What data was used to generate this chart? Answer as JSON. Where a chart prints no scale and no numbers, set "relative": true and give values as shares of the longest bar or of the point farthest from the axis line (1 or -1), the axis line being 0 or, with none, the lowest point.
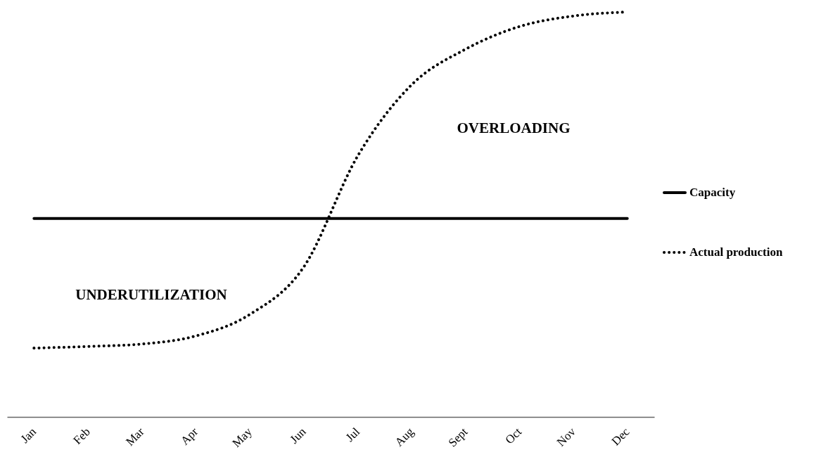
{
  "chart_data": {
    "type": "line",
    "relative": true,
    "categories": [
      "Jan",
      "Feb",
      "Mar",
      "Apr",
      "May",
      "Jun",
      "Jul",
      "Aug",
      "Sept",
      "Oct",
      "Nov",
      "Dec"
    ],
    "series": [
      {
        "name": "Capacity",
        "color": "#000000",
        "line_style": "solid",
        "values": [
          0.49,
          0.49,
          0.49,
          0.49,
          0.49,
          0.49,
          0.49,
          0.49,
          0.49,
          0.49,
          0.49,
          0.49
        ]
      },
      {
        "name": "Actual production",
        "color": "#000000",
        "line_style": "dotted",
        "values": [
          0.17,
          0.174,
          0.18,
          0.2,
          0.253,
          0.37,
          0.644,
          0.82,
          0.908,
          0.964,
          0.99,
          1
        ]
      }
    ],
    "annotations": [
      "UNDERUTILIZATION",
      "OVERLOADING"
    ],
    "legend": "right",
    "grid": false,
    "marker": "none"
  }
}
